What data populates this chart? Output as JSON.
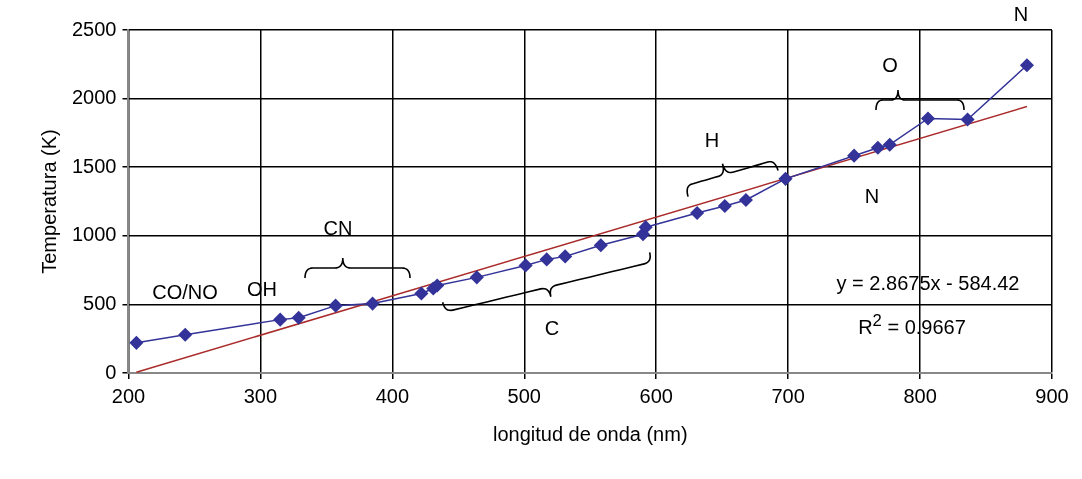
{
  "chart_data": {
    "type": "line",
    "xlabel": "longitud de onda (nm)",
    "ylabel": "Temperatura (K)",
    "xlim": [
      200,
      900
    ],
    "xticks": [
      200,
      300,
      400,
      500,
      600,
      700,
      800,
      900
    ],
    "ylim": [
      0,
      2500
    ],
    "yticks": [
      0,
      500,
      1000,
      1500,
      2000,
      2500
    ],
    "grid": true,
    "series": [
      {
        "color": "#333399",
        "marker": "diamond",
        "x": [
          206,
          243,
          315,
          329,
          357,
          385,
          422,
          431,
          434,
          464,
          501,
          517,
          531,
          558,
          590,
          592,
          631,
          652,
          668,
          698,
          750,
          768,
          777,
          806,
          836,
          881
        ],
        "values": [
          220,
          279,
          389,
          403,
          491,
          506,
          579,
          616,
          638,
          697,
          784,
          828,
          850,
          931,
          1012,
          1063,
          1166,
          1217,
          1261,
          1415,
          1584,
          1642,
          1664,
          1855,
          1848,
          2243
        ]
      },
      {
        "color": "#aa2a2a",
        "marker": "none",
        "x": [
          206,
          881
        ],
        "values": [
          6,
          1942
        ]
      }
    ],
    "annotations": [
      "CO/NO",
      "OH",
      "CN",
      "C",
      "H",
      "O",
      "N",
      "N",
      "y = 2.8675x - 584.42",
      "R$^{2}$ = 0.9667"
    ]
  }
}
